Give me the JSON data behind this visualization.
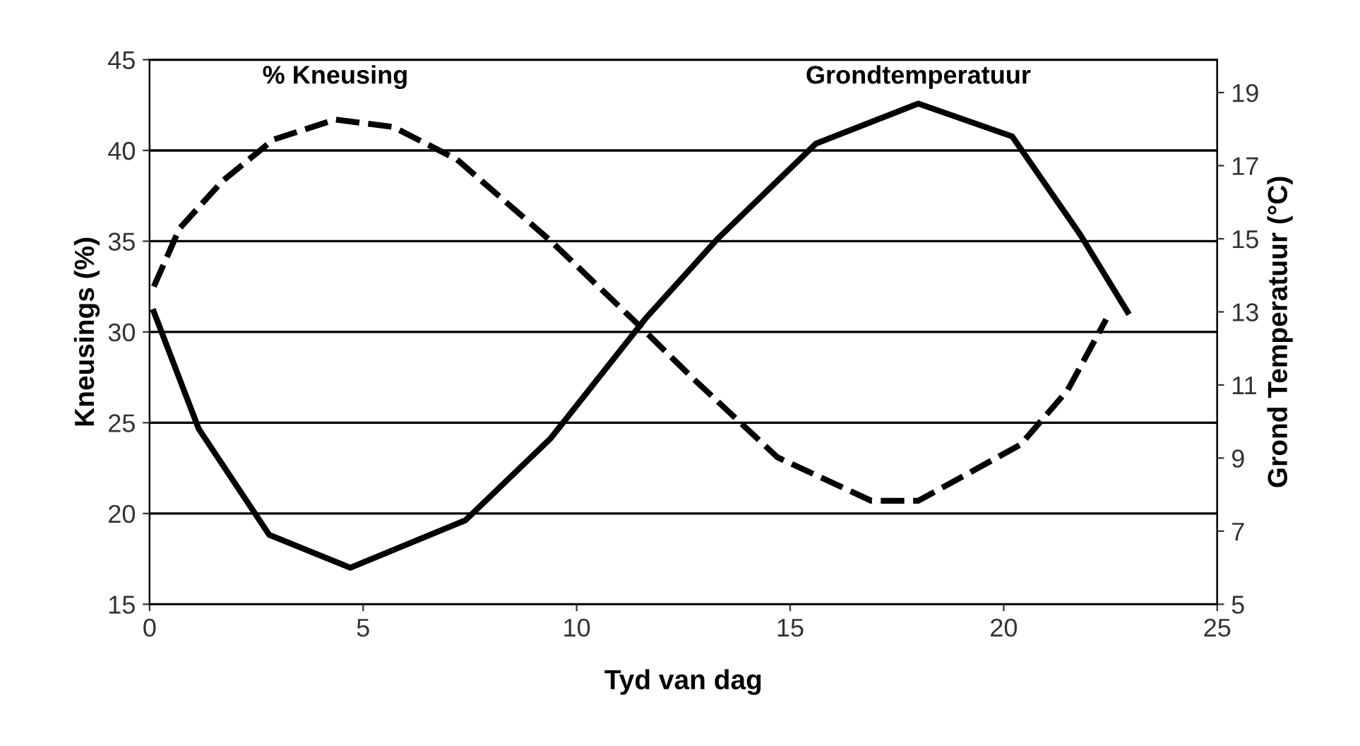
{
  "chart_data": {
    "type": "line",
    "xlabel": "Tyd van dag",
    "ylabel": "Kneusings (%)",
    "y2label": "Grond Temperatuur (°C)",
    "xlim": [
      0,
      25
    ],
    "xticks": [
      0,
      5,
      10,
      15,
      20,
      25
    ],
    "ylim": [
      15,
      45
    ],
    "yticks": [
      15,
      20,
      25,
      30,
      35,
      40,
      45
    ],
    "y2lim": [
      5,
      19.9
    ],
    "y2ticks": [
      5,
      7,
      9,
      11,
      13,
      15,
      17,
      19
    ],
    "grid": "y",
    "legend": false,
    "series": [
      {
        "name": "% Kneusing",
        "color": "#000000",
        "line_style": "dashed",
        "x": [
          0.1,
          0.7,
          1.7,
          2.9,
          4.35,
          5.7,
          7.2,
          9.4,
          11.4,
          12.7,
          14.7,
          16.9,
          18.0,
          20.4,
          21.5,
          22.4
        ],
        "values": [
          32.5,
          35.7,
          38.3,
          40.6,
          41.7,
          41.3,
          39.5,
          35.0,
          30.5,
          27.5,
          23.1,
          20.7,
          20.7,
          23.8,
          26.8,
          30.7
        ]
      },
      {
        "name": "Grondtemperatuur",
        "color": "#000000",
        "line_style": "solid",
        "axis": "y2",
        "x": [
          0.1,
          1.15,
          2.8,
          4.7,
          7.4,
          9.4,
          11.6,
          13.3,
          15.6,
          18.0,
          20.2,
          21.8,
          22.9
        ],
        "values": [
          13.0,
          9.8,
          6.9,
          6.0,
          7.3,
          9.55,
          12.8,
          15.0,
          17.6,
          18.7,
          17.8,
          15.1,
          13.0
        ]
      }
    ]
  }
}
